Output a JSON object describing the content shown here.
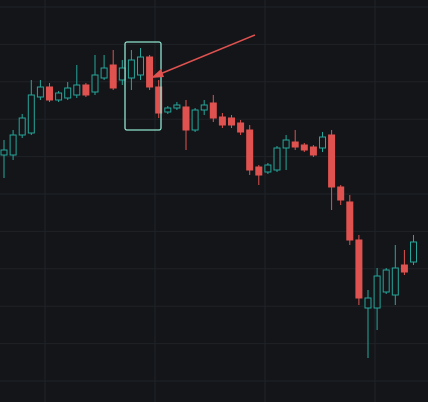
{
  "chart_data": {
    "type": "candlestick",
    "up_color": "#26a69a",
    "down_color": "#e0524f",
    "ylim": [
      0,
      402
    ],
    "grid": true,
    "open": [
      247,
      247,
      267,
      269,
      305,
      315,
      302,
      304,
      307,
      317,
      310,
      324,
      337,
      322,
      324,
      327,
      345,
      315,
      290,
      294,
      295,
      272,
      292,
      299,
      285,
      284,
      279,
      272,
      235,
      230,
      232,
      254,
      260,
      257,
      255,
      254,
      267,
      215,
      200,
      162,
      94,
      94,
      110,
      107,
      137,
      140
    ],
    "high": [
      262,
      272,
      288,
      322,
      322,
      319,
      311,
      320,
      337,
      319,
      347,
      347,
      352,
      342,
      352,
      354,
      347,
      322,
      296,
      300,
      302,
      294,
      302,
      307,
      289,
      287,
      282,
      277,
      237,
      239,
      256,
      267,
      272,
      259,
      257,
      270,
      272,
      217,
      207,
      167,
      112,
      134,
      134,
      157,
      152,
      167
    ],
    "low": [
      224,
      242,
      264,
      267,
      302,
      300,
      300,
      302,
      304,
      305,
      307,
      322,
      312,
      317,
      312,
      322,
      312,
      284,
      288,
      292,
      252,
      270,
      287,
      280,
      274,
      274,
      267,
      227,
      217,
      228,
      230,
      232,
      252,
      250,
      245,
      250,
      192,
      197,
      157,
      97,
      44,
      72,
      108,
      97,
      127,
      137
    ],
    "close": [
      252,
      267,
      284,
      307,
      315,
      302,
      309,
      314,
      317,
      307,
      327,
      334,
      314,
      334,
      342,
      345,
      315,
      289,
      294,
      297,
      272,
      292,
      297,
      284,
      277,
      277,
      270,
      232,
      227,
      237,
      254,
      262,
      255,
      252,
      247,
      265,
      215,
      202,
      162,
      104,
      104,
      126,
      132,
      134,
      130,
      160
    ]
  }
}
